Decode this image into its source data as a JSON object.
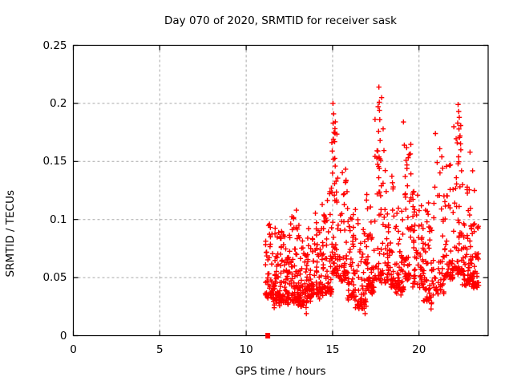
{
  "window": {
    "background": "#ffffff"
  },
  "chart_data": {
    "type": "scatter",
    "title": "Day 070 of 2020, SRMTID for receiver sask",
    "xlabel": "GPS time / hours",
    "ylabel": "SRMTID / TECUs",
    "xlim": [
      0,
      24
    ],
    "ylim": [
      0,
      0.25
    ],
    "xticks": [
      0,
      5,
      10,
      15,
      20
    ],
    "xtick_labels": [
      "0",
      "5",
      "10",
      "15",
      "20"
    ],
    "yticks": [
      0,
      0.05,
      0.1,
      0.15,
      0.2,
      0.25
    ],
    "ytick_labels": [
      "0",
      "0.05",
      "0.1",
      "0.15",
      "0.2",
      "0.25"
    ],
    "grid": "dashed-at-major-ticks",
    "legend": "none",
    "marker": {
      "shape": "plus",
      "color": "#ff0000",
      "size": 7,
      "stroke": 1.4
    },
    "grid_color": "#a8a8a8",
    "axis_color": "#000000",
    "data_time_range_hours": [
      11.1,
      23.45
    ],
    "value_range_tecus": [
      0.0,
      0.215
    ],
    "start_marker": {
      "x": 11.25,
      "y": 0.0,
      "shape": "filled-square",
      "note": "isolated point at zero on the x-axis"
    },
    "feature_points": [
      [
        15.02,
        0.2
      ],
      [
        15.06,
        0.191
      ],
      [
        15.03,
        0.183
      ],
      [
        15.08,
        0.175
      ],
      [
        15.12,
        0.167
      ],
      [
        14.98,
        0.159
      ],
      [
        15.05,
        0.152
      ],
      [
        15.15,
        0.146
      ],
      [
        15.0,
        0.14
      ],
      [
        15.2,
        0.133
      ],
      [
        14.93,
        0.127
      ],
      [
        15.1,
        0.121
      ],
      [
        15.25,
        0.115
      ],
      [
        17.68,
        0.214
      ],
      [
        17.7,
        0.201
      ],
      [
        17.71,
        0.194
      ],
      [
        17.73,
        0.186
      ],
      [
        17.66,
        0.176
      ],
      [
        17.75,
        0.168
      ],
      [
        17.62,
        0.159
      ],
      [
        17.78,
        0.151
      ],
      [
        17.7,
        0.144
      ],
      [
        17.67,
        0.136
      ],
      [
        17.82,
        0.129
      ],
      [
        17.58,
        0.122
      ],
      [
        19.1,
        0.184
      ],
      [
        19.15,
        0.164
      ],
      [
        19.25,
        0.151
      ],
      [
        19.3,
        0.144
      ],
      [
        19.2,
        0.137
      ],
      [
        19.33,
        0.129
      ],
      [
        20.95,
        0.174
      ],
      [
        21.05,
        0.149
      ],
      [
        21.2,
        0.161
      ],
      [
        21.32,
        0.154
      ],
      [
        22.26,
        0.199
      ],
      [
        22.3,
        0.193
      ],
      [
        22.33,
        0.188
      ],
      [
        22.24,
        0.183
      ],
      [
        22.31,
        0.178
      ],
      [
        22.37,
        0.172
      ],
      [
        22.21,
        0.166
      ],
      [
        22.42,
        0.16
      ],
      [
        22.29,
        0.154
      ],
      [
        22.26,
        0.148
      ],
      [
        22.46,
        0.142
      ],
      [
        22.16,
        0.136
      ],
      [
        22.52,
        0.13
      ],
      [
        22.95,
        0.158
      ],
      [
        23.1,
        0.142
      ],
      [
        23.2,
        0.125
      ],
      [
        11.62,
        0.024
      ],
      [
        12.42,
        0.027
      ],
      [
        13.48,
        0.019
      ],
      [
        16.32,
        0.024
      ],
      [
        16.88,
        0.019
      ],
      [
        20.7,
        0.023
      ],
      [
        12.9,
        0.108
      ],
      [
        14.4,
        0.113
      ],
      [
        11.35,
        0.096
      ],
      [
        13.05,
        0.095
      ]
    ],
    "density_bins_format": "[hourStart, hourEnd, count, yMin, yMax, skewExponent]",
    "density_bins": [
      [
        11.1,
        11.5,
        40,
        0.032,
        0.095,
        2.4
      ],
      [
        11.5,
        12.0,
        60,
        0.026,
        0.093,
        2.4
      ],
      [
        12.0,
        12.5,
        60,
        0.028,
        0.09,
        2.4
      ],
      [
        12.5,
        13.0,
        60,
        0.027,
        0.105,
        2.6
      ],
      [
        13.0,
        13.5,
        58,
        0.024,
        0.092,
        2.4
      ],
      [
        13.5,
        14.0,
        55,
        0.03,
        0.096,
        2.4
      ],
      [
        14.0,
        14.5,
        55,
        0.031,
        0.112,
        2.5
      ],
      [
        14.5,
        14.95,
        45,
        0.035,
        0.125,
        2.5
      ],
      [
        14.95,
        15.3,
        40,
        0.048,
        0.19,
        2.9
      ],
      [
        15.3,
        15.85,
        50,
        0.045,
        0.15,
        2.7
      ],
      [
        15.85,
        16.35,
        50,
        0.03,
        0.112,
        2.4
      ],
      [
        16.35,
        16.95,
        55,
        0.022,
        0.1,
        2.4
      ],
      [
        16.95,
        17.45,
        55,
        0.035,
        0.128,
        2.5
      ],
      [
        17.45,
        18.0,
        50,
        0.042,
        0.205,
        3.0
      ],
      [
        18.0,
        18.55,
        55,
        0.04,
        0.148,
        2.7
      ],
      [
        18.55,
        19.15,
        55,
        0.034,
        0.112,
        2.4
      ],
      [
        19.15,
        19.6,
        42,
        0.045,
        0.165,
        2.8
      ],
      [
        19.6,
        20.25,
        60,
        0.04,
        0.128,
        2.5
      ],
      [
        20.25,
        20.85,
        55,
        0.026,
        0.115,
        2.4
      ],
      [
        20.85,
        21.45,
        40,
        0.032,
        0.15,
        2.7
      ],
      [
        21.45,
        22.0,
        48,
        0.045,
        0.158,
        2.6
      ],
      [
        22.0,
        22.5,
        45,
        0.05,
        0.19,
        2.8
      ],
      [
        22.5,
        23.0,
        55,
        0.042,
        0.13,
        2.5
      ],
      [
        23.0,
        23.45,
        48,
        0.04,
        0.098,
        2.4
      ]
    ],
    "prng_seed": 70
  }
}
